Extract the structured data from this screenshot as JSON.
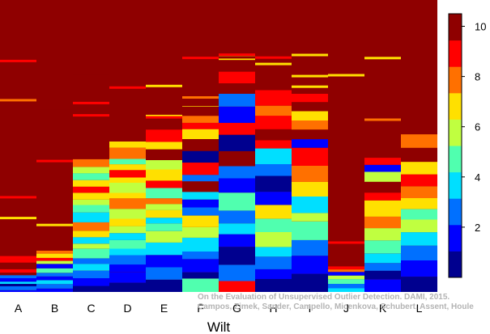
{
  "chart_data": {
    "type": "heatmap",
    "title": "",
    "xlabel": "Wilt",
    "ylabel": "",
    "categories": [
      "A",
      "B",
      "C",
      "D",
      "E",
      "F",
      "G",
      "H",
      "I",
      "J",
      "K",
      "L"
    ],
    "colorbar": {
      "min": 0,
      "max": 10.5,
      "ticks": [
        "2",
        "4",
        "6",
        "8",
        "10"
      ],
      "palette": [
        "#00008f",
        "#0000ff",
        "#0070ff",
        "#00dfff",
        "#50ffaf",
        "#c0ff40",
        "#ffe000",
        "#ff7000",
        "#ff0000",
        "#8f0000"
      ]
    },
    "background_value": 10.5,
    "columns": [
      {
        "name": "A",
        "outlier_levels": [
          1,
          2,
          0,
          3,
          1,
          2,
          9,
          8,
          9,
          9,
          8,
          8
        ]
      },
      {
        "name": "B",
        "outlier_levels": [
          1,
          2,
          3,
          1,
          2,
          4,
          1,
          5,
          8,
          6,
          7,
          9,
          9
        ]
      },
      {
        "name": "C",
        "outlier_levels": [
          0,
          1,
          2,
          3,
          2,
          4,
          5,
          3,
          6,
          7,
          3,
          4,
          5,
          6,
          8,
          6,
          4,
          5,
          7
        ]
      },
      {
        "name": "D",
        "outlier_levels": [
          0,
          1,
          1,
          2,
          3,
          4,
          3,
          5,
          6,
          5,
          7,
          6,
          5,
          6,
          8,
          6,
          4,
          7,
          6,
          9
        ]
      },
      {
        "name": "E",
        "outlier_levels": [
          0,
          2,
          1,
          3,
          5,
          4,
          3,
          6,
          5,
          7,
          4,
          8,
          6,
          5,
          9,
          6,
          8,
          9
        ]
      },
      {
        "name": "F",
        "outlier_levels": [
          4,
          0,
          1,
          2,
          3,
          5,
          6,
          2,
          1,
          3,
          9,
          2,
          8,
          0,
          9,
          6,
          8,
          7
        ]
      },
      {
        "name": "G",
        "outlier_levels": [
          8,
          2,
          0,
          1,
          3,
          2,
          4,
          1,
          2,
          9,
          0,
          8,
          1,
          2,
          9,
          8,
          9
        ]
      },
      {
        "name": "H",
        "outlier_levels": [
          0,
          1,
          2,
          3,
          5,
          4,
          6,
          1,
          0,
          2,
          3,
          8,
          9,
          8,
          7,
          8
        ]
      },
      {
        "name": "I",
        "outlier_levels": [
          0,
          1,
          2,
          4,
          5,
          3,
          6,
          7,
          8,
          1,
          9,
          7,
          6,
          9,
          8
        ]
      },
      {
        "name": "J",
        "outlier_levels": [
          3,
          2,
          4,
          5,
          1,
          7,
          8,
          9,
          9
        ]
      },
      {
        "name": "K",
        "outlier_levels": [
          1,
          0,
          2,
          3,
          4,
          5,
          7,
          6,
          8,
          9,
          5,
          1,
          8
        ]
      },
      {
        "name": "L",
        "outlier_levels": [
          0,
          1,
          2,
          3,
          5,
          4,
          6,
          7,
          8,
          6,
          9,
          7,
          9
        ]
      }
    ],
    "citation": {
      "line1": "On the Evaluation of Unsupervised Outlier Detection. DAMI, 2015.",
      "line2": "Campos, Zimek, Sander, Campello, Micenkova, Schubert, Assent, Houle"
    }
  }
}
